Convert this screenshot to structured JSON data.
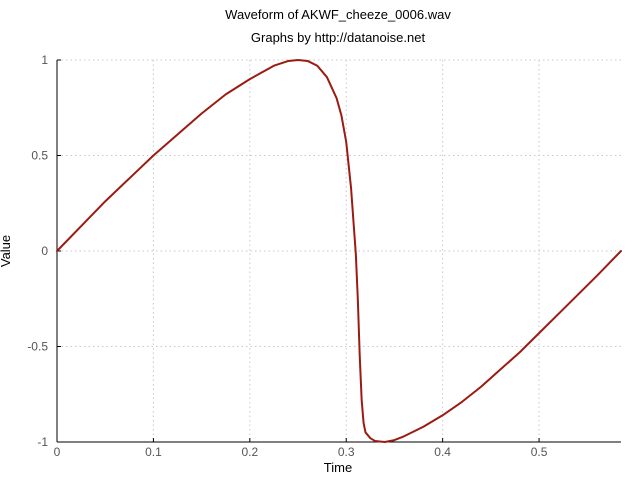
{
  "chart_data": {
    "type": "line",
    "title": "Waveform of AKWF_cheeze_0006.wav",
    "subtitle": "Graphs by http://datanoise.net",
    "xlabel": "Time",
    "ylabel": "Value",
    "xlim": [
      0,
      0.585
    ],
    "ylim": [
      -1,
      1
    ],
    "x_ticks": [
      0,
      0.1,
      0.2,
      0.3,
      0.4,
      0.5
    ],
    "x_tick_labels": [
      "0",
      "0.1",
      "0.2",
      "0.3",
      "0.4",
      "0.5"
    ],
    "y_ticks": [
      -1,
      -0.5,
      0,
      0.5,
      1
    ],
    "y_tick_labels": [
      "-1",
      "-0.5",
      "0",
      "0.5",
      "1"
    ],
    "grid": true,
    "line_color": "#9b1b12",
    "series": [
      {
        "x": [
          0,
          0.025,
          0.05,
          0.075,
          0.1,
          0.125,
          0.15,
          0.175,
          0.2,
          0.225,
          0.24,
          0.25,
          0.26,
          0.27,
          0.28,
          0.29,
          0.295,
          0.3,
          0.305,
          0.31,
          0.312,
          0.314,
          0.316,
          0.318,
          0.32,
          0.325,
          0.33,
          0.34,
          0.35,
          0.36,
          0.38,
          0.4,
          0.42,
          0.44,
          0.46,
          0.48,
          0.5,
          0.52,
          0.54,
          0.56,
          0.585
        ],
        "y": [
          0,
          0.13,
          0.26,
          0.38,
          0.5,
          0.61,
          0.72,
          0.82,
          0.9,
          0.97,
          0.995,
          1.0,
          0.995,
          0.97,
          0.91,
          0.8,
          0.71,
          0.57,
          0.33,
          -0.02,
          -0.25,
          -0.55,
          -0.78,
          -0.9,
          -0.95,
          -0.98,
          -0.995,
          -1.0,
          -0.99,
          -0.97,
          -0.92,
          -0.86,
          -0.79,
          -0.71,
          -0.62,
          -0.53,
          -0.43,
          -0.33,
          -0.23,
          -0.13,
          0
        ]
      }
    ]
  }
}
